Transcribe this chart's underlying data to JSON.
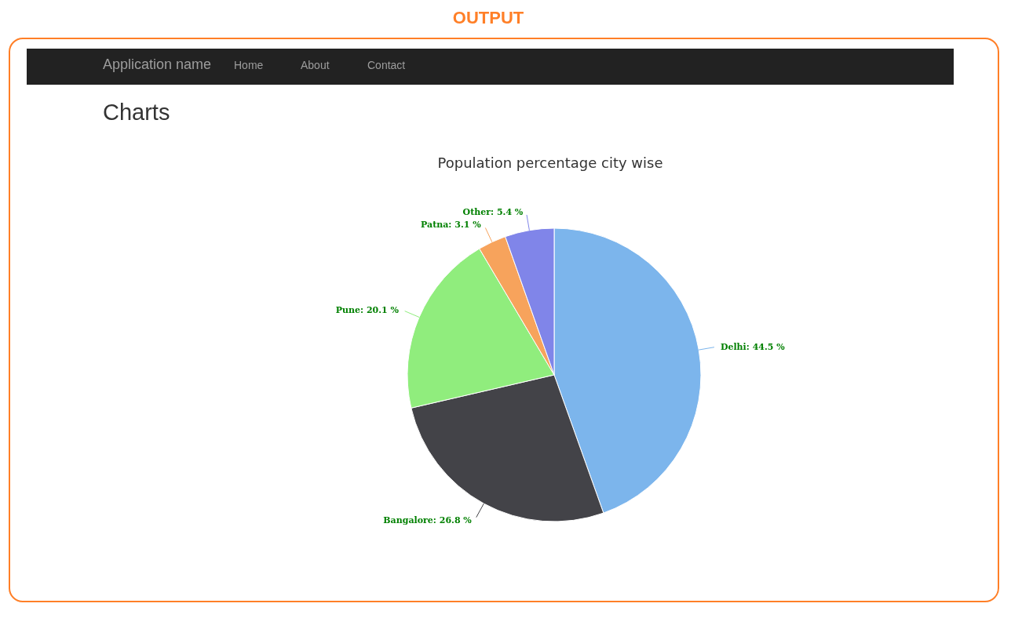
{
  "chart_data": {
    "type": "pie",
    "title": "Population percentage city wise",
    "categories": [
      "Delhi",
      "Bangalore",
      "Pune",
      "Patna",
      "Other"
    ],
    "values": [
      44.5,
      26.8,
      20.1,
      3.1,
      5.4
    ],
    "value_labels": [
      "44.5 %",
      "26.8 %",
      "20.1 %",
      "3.1 %",
      "5.4 %"
    ],
    "colors": [
      "#7cb5ec",
      "#434348",
      "#90ed7d",
      "#f7a35c",
      "#8085e9"
    ],
    "annotations": [
      "OUTPUT",
      "Charts",
      "Application name",
      "Home",
      "About",
      "Contact"
    ]
  }
}
